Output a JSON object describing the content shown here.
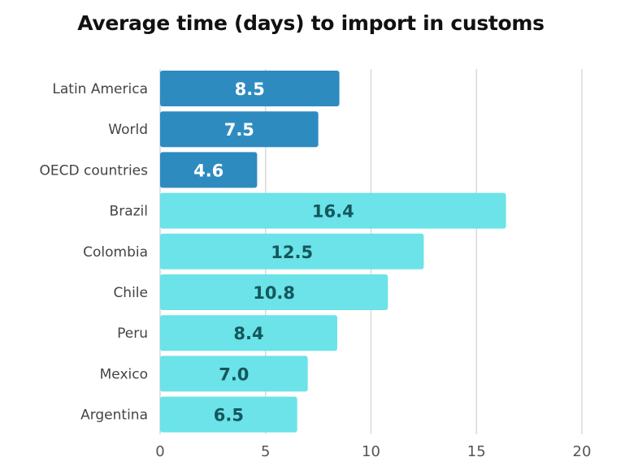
{
  "chart_data": {
    "type": "bar",
    "orientation": "horizontal",
    "title": "Average time (days) to import in customs",
    "xlabel": "",
    "ylabel": "",
    "xlim": [
      0,
      20
    ],
    "xticks": [
      0,
      5,
      10,
      15,
      20
    ],
    "grid": true,
    "categories": [
      "Latin America",
      "World",
      "OECD countries",
      "Brazil",
      "Colombia",
      "Chile",
      "Peru",
      "Mexico",
      "Argentina"
    ],
    "values": [
      8.5,
      7.5,
      4.6,
      16.4,
      12.5,
      10.8,
      8.4,
      7.0,
      6.5
    ],
    "value_labels": [
      "8.5",
      "7.5",
      "4.6",
      "16.4",
      "12.5",
      "10.8",
      "8.4",
      "7.0",
      "6.5"
    ],
    "groups": [
      "region",
      "region",
      "region",
      "country",
      "country",
      "country",
      "country",
      "country",
      "country"
    ],
    "colors": {
      "region": "#2e8bc0",
      "country": "#6be3e8",
      "region_label": "#ffffff",
      "country_label": "#14575c",
      "grid": "#d9d9d9"
    }
  }
}
